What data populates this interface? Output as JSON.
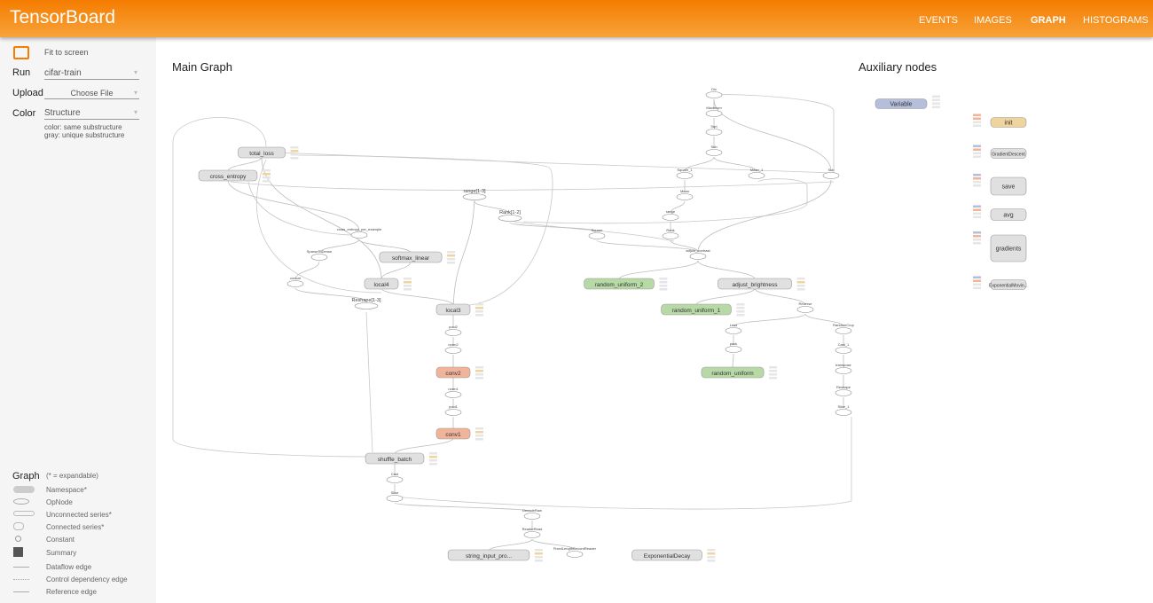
{
  "header": {
    "title": "TensorBoard",
    "tabs": [
      {
        "label": "EVENTS",
        "active": false
      },
      {
        "label": "IMAGES",
        "active": false
      },
      {
        "label": "GRAPH",
        "active": true
      },
      {
        "label": "HISTOGRAMS",
        "active": false
      }
    ]
  },
  "sidebar": {
    "fit_label": "Fit to screen",
    "run_label": "Run",
    "run_value": "cifar-train",
    "upload_label": "Upload",
    "upload_button": "Choose File",
    "color_label": "Color",
    "color_value": "Structure",
    "color_note1": "color: same substructure",
    "color_note2": "gray: unique substructure",
    "legend": {
      "title": "Graph",
      "note": "(* = expandable)",
      "items": [
        "Namespace*",
        "OpNode",
        "Unconnected series*",
        "Connected series*",
        "Constant",
        "Summary",
        "Dataflow edge",
        "Control dependency edge",
        "Reference edge"
      ]
    }
  },
  "main": {
    "title": "Main Graph",
    "aux_title": "Auxiliary nodes"
  },
  "colors": {
    "accent": "#f57c00",
    "namespace": "#e0e0e0",
    "conv": "#f0b49a",
    "green": "#b7d9a6",
    "variable": "#b5bfdc",
    "init": "#f0d49e"
  },
  "graph": {
    "nodes": [
      {
        "id": "total_loss",
        "label": "total_loss",
        "kind": "ns"
      },
      {
        "id": "cross_entropy",
        "label": "cross_entropy",
        "kind": "ns"
      },
      {
        "id": "range13",
        "label": "range[1-3]",
        "kind": "series"
      },
      {
        "id": "rank12",
        "label": "Rank[1-2]",
        "kind": "series"
      },
      {
        "id": "cepe",
        "label": "cross_entropy_per_example",
        "kind": "op"
      },
      {
        "id": "s2d",
        "label": "SparseToDense",
        "kind": "op"
      },
      {
        "id": "softmax_linear",
        "label": "softmax_linear",
        "kind": "ns"
      },
      {
        "id": "concat",
        "label": "concat",
        "kind": "op"
      },
      {
        "id": "local4",
        "label": "local4",
        "kind": "ns"
      },
      {
        "id": "reshape13",
        "label": "Reshape[1-3]",
        "kind": "series"
      },
      {
        "id": "local3",
        "label": "local3",
        "kind": "ns"
      },
      {
        "id": "pool2",
        "label": "pool2",
        "kind": "op"
      },
      {
        "id": "norm2",
        "label": "norm2",
        "kind": "op"
      },
      {
        "id": "conv2",
        "label": "conv2",
        "kind": "conv"
      },
      {
        "id": "norm1",
        "label": "norm1",
        "kind": "op"
      },
      {
        "id": "pool1",
        "label": "pool1",
        "kind": "op"
      },
      {
        "id": "conv1",
        "label": "conv1",
        "kind": "conv"
      },
      {
        "id": "shuffle_batch",
        "label": "shuffle_batch",
        "kind": "ns"
      },
      {
        "id": "cast",
        "label": "Cast",
        "kind": "op"
      },
      {
        "id": "slice",
        "label": "Slice",
        "kind": "op"
      },
      {
        "id": "decoderaw",
        "label": "DecodeRaw",
        "kind": "op"
      },
      {
        "id": "readerread",
        "label": "ReaderRead",
        "kind": "op"
      },
      {
        "id": "sip",
        "label": "string_input_pro...",
        "kind": "ns"
      },
      {
        "id": "flrr",
        "label": "FixedLengthRecordReader",
        "kind": "op"
      },
      {
        "id": "expdecay",
        "label": "ExponentialDecay",
        "kind": "ns"
      },
      {
        "id": "div",
        "label": "Div",
        "kind": "op"
      },
      {
        "id": "maximum",
        "label": "Maximum",
        "kind": "op"
      },
      {
        "id": "sqrt",
        "label": "Sqrt",
        "kind": "op"
      },
      {
        "id": "sub",
        "label": "Sub",
        "kind": "op"
      },
      {
        "id": "square1",
        "label": "Square_1",
        "kind": "op"
      },
      {
        "id": "mean1",
        "label": "Mean_1",
        "kind": "op"
      },
      {
        "id": "sub1",
        "label": "Sub",
        "kind": "op"
      },
      {
        "id": "mean",
        "label": "Mean",
        "kind": "op"
      },
      {
        "id": "range",
        "label": "range",
        "kind": "op"
      },
      {
        "id": "rank",
        "label": "Rank",
        "kind": "op"
      },
      {
        "id": "square",
        "label": "Square",
        "kind": "op"
      },
      {
        "id": "adjc",
        "label": "adjust_contrast",
        "kind": "op"
      },
      {
        "id": "ru2",
        "label": "random_uniform_2",
        "kind": "green"
      },
      {
        "id": "adjb",
        "label": "adjust_brightness",
        "kind": "ns"
      },
      {
        "id": "ru1",
        "label": "random_uniform_1",
        "kind": "green"
      },
      {
        "id": "reverse",
        "label": "Reverse",
        "kind": "op"
      },
      {
        "id": "less",
        "label": "Less",
        "kind": "op"
      },
      {
        "id": "randomcrop",
        "label": "RandomCrop",
        "kind": "op"
      },
      {
        "id": "pack",
        "label": "pack",
        "kind": "op"
      },
      {
        "id": "cast1",
        "label": "Cast_1",
        "kind": "op"
      },
      {
        "id": "ru",
        "label": "random_uniform",
        "kind": "green"
      },
      {
        "id": "transpose",
        "label": "transpose",
        "kind": "op"
      },
      {
        "id": "reshape",
        "label": "Reshape",
        "kind": "op"
      },
      {
        "id": "slice1",
        "label": "Slice_1",
        "kind": "op"
      }
    ],
    "edges": [
      [
        "cross_entropy",
        "total_loss"
      ],
      [
        "cepe",
        "cross_entropy"
      ],
      [
        "s2d",
        "cepe"
      ],
      [
        "softmax_linear",
        "cepe"
      ],
      [
        "concat",
        "s2d"
      ],
      [
        "local4",
        "softmax_linear"
      ],
      [
        "reshape13",
        "concat"
      ],
      [
        "local3",
        "local4"
      ],
      [
        "pool2",
        "local3"
      ],
      [
        "norm2",
        "pool2"
      ],
      [
        "conv2",
        "norm2"
      ],
      [
        "norm1",
        "conv2"
      ],
      [
        "pool1",
        "norm1"
      ],
      [
        "conv1",
        "pool1"
      ],
      [
        "shuffle_batch",
        "conv1"
      ],
      [
        "cast",
        "shuffle_batch"
      ],
      [
        "slice",
        "cast"
      ],
      [
        "decoderaw",
        "slice"
      ],
      [
        "readerread",
        "decoderaw"
      ],
      [
        "sip",
        "readerread"
      ],
      [
        "flrr",
        "readerread"
      ],
      [
        "maximum",
        "div"
      ],
      [
        "sqrt",
        "maximum"
      ],
      [
        "sub",
        "sqrt"
      ],
      [
        "square1",
        "sub"
      ],
      [
        "mean1",
        "sub"
      ],
      [
        "mean",
        "square1"
      ],
      [
        "range",
        "mean"
      ],
      [
        "rank",
        "range"
      ],
      [
        "adjc",
        "rank"
      ],
      [
        "adjc",
        "square"
      ],
      [
        "adjc",
        "sub1"
      ],
      [
        "sub1",
        "div"
      ],
      [
        "ru2",
        "adjc"
      ],
      [
        "adjb",
        "adjc"
      ],
      [
        "ru1",
        "adjb"
      ],
      [
        "reverse",
        "adjb"
      ],
      [
        "less",
        "reverse"
      ],
      [
        "randomcrop",
        "reverse"
      ],
      [
        "pack",
        "less"
      ],
      [
        "ru",
        "pack"
      ],
      [
        "cast1",
        "randomcrop"
      ],
      [
        "transpose",
        "cast1"
      ],
      [
        "reshape",
        "transpose"
      ],
      [
        "slice1",
        "reshape"
      ],
      [
        "rank12",
        "range13"
      ],
      [
        "square",
        "rank12"
      ],
      [
        "range13",
        "local3"
      ],
      [
        "local4",
        "total_loss"
      ]
    ],
    "aux_nodes": [
      {
        "label": "Variable",
        "kind": "variable"
      },
      {
        "label": "init",
        "kind": "init"
      },
      {
        "label": "GradientDescent",
        "kind": "ns"
      },
      {
        "label": "save",
        "kind": "ns"
      },
      {
        "label": "avg",
        "kind": "ns"
      },
      {
        "label": "gradients",
        "kind": "ns"
      },
      {
        "label": "ExponentialMovin...",
        "kind": "ns"
      }
    ]
  }
}
